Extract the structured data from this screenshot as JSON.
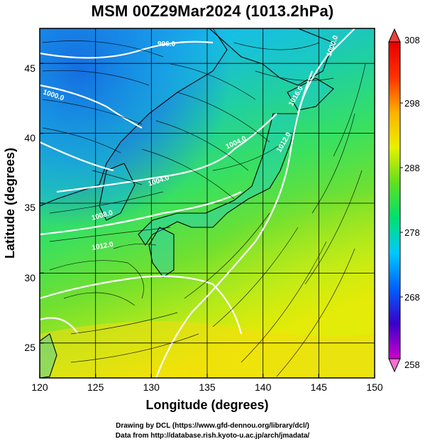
{
  "title": "MSM 00Z29Mar2024 (1013.2hPa)",
  "axes": {
    "xlabel": "Longitude (degrees)",
    "ylabel": "Latitude  (degrees)",
    "xticks": [
      "120",
      "125",
      "130",
      "135",
      "140",
      "145",
      "150"
    ],
    "yticks": [
      "25",
      "30",
      "35",
      "40",
      "45"
    ]
  },
  "colorbar": {
    "ticks": [
      "308",
      "298",
      "288",
      "278",
      "268",
      "258"
    ],
    "colors": [
      "#cc00cc",
      "#3a00c8",
      "#0060ff",
      "#00c8ff",
      "#00e070",
      "#60e020",
      "#e8f000",
      "#ffb000",
      "#ff3000",
      "#e60000"
    ]
  },
  "isobar_labels": [
    "996.0",
    "1000.0",
    "1004.0",
    "1008.0",
    "1012.0",
    "1012.0",
    "1016.0",
    "1004.0",
    "1000.0"
  ],
  "credits": {
    "line1": "Drawing by DCL (https://www.gfd-dennou.org/library/dcl/)",
    "line2": "Data from http://database.rish.kyoto-u.ac.jp/arch/jmadata/"
  },
  "chart_data": {
    "type": "heatmap",
    "title": "MSM 00Z29Mar2024 (1013.2hPa)",
    "xlabel": "Longitude (degrees)",
    "ylabel": "Latitude  (degrees)",
    "xlim": [
      120,
      150
    ],
    "ylim": [
      22.5,
      47.5
    ],
    "colorbar_range": [
      258,
      308
    ],
    "grid": true
  }
}
